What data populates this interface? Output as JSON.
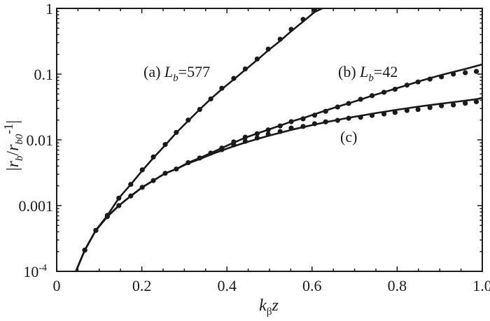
{
  "chart_data": {
    "type": "line",
    "title": "",
    "xlabel": "kβz",
    "ylabel": "|rb/rb0-1|",
    "xlabel_parts": {
      "main": "k",
      "sub": "β",
      "tail": "z"
    },
    "ylabel_parts": {
      "bar_open": "|",
      "r1": "r",
      "s1": "b",
      "slash": "/",
      "r2": "r",
      "s2": "b0",
      "tail": "-1",
      "bar_close": "|"
    },
    "xlim": [
      0,
      1.0
    ],
    "ylim": [
      0.0001,
      1
    ],
    "yscale": "log",
    "grid": false,
    "legend": "none (inline annotations)",
    "x_ticks": [
      {
        "value": 0,
        "label": "0"
      },
      {
        "value": 0.2,
        "label": "0.2"
      },
      {
        "value": 0.4,
        "label": "0.4"
      },
      {
        "value": 0.6,
        "label": "0.6"
      },
      {
        "value": 0.8,
        "label": "0.8"
      },
      {
        "value": 1.0,
        "label": "1.0"
      }
    ],
    "y_ticks": [
      {
        "value": 1,
        "label": "1"
      },
      {
        "value": 0.1,
        "label": "0.1"
      },
      {
        "value": 0.01,
        "label": "0.01"
      },
      {
        "value": 0.001,
        "label": "0.001"
      },
      {
        "value": 0.0001,
        "label": "10",
        "sup": "-4"
      }
    ],
    "annotations": [
      {
        "id": "a",
        "prefix": "(a) ",
        "var": "L",
        "sub": "b",
        "suffix": "=577",
        "x": 205,
        "y": 110
      },
      {
        "id": "b",
        "prefix": "(b) ",
        "var": "L",
        "sub": "b",
        "suffix": "=42",
        "x": 483,
        "y": 110
      },
      {
        "id": "c",
        "prefix": "(c)",
        "var": "",
        "sub": "",
        "suffix": "",
        "x": 486,
        "y": 203
      }
    ],
    "series": [
      {
        "name": "(a) Lb=577",
        "line": {
          "x": [
            0.045,
            0.066,
            0.092,
            0.119,
            0.146,
            0.174,
            0.201,
            0.227,
            0.255,
            0.281,
            0.309,
            0.336,
            0.362,
            0.388,
            0.416,
            0.443,
            0.471,
            0.497,
            0.525,
            0.551,
            0.579,
            0.606,
            0.624
          ],
          "y": [
            0.0001,
            0.00021,
            0.00042,
            0.00071,
            0.0013,
            0.0021,
            0.0034,
            0.0053,
            0.0083,
            0.0128,
            0.0195,
            0.029,
            0.042,
            0.059,
            0.083,
            0.116,
            0.164,
            0.23,
            0.32,
            0.45,
            0.63,
            0.88,
            1.0
          ]
        },
        "points": {
          "x": [
            0.066,
            0.092,
            0.119,
            0.146,
            0.174,
            0.201,
            0.227,
            0.255,
            0.281,
            0.309,
            0.336,
            0.362,
            0.388,
            0.416,
            0.443,
            0.471,
            0.497,
            0.525,
            0.551,
            0.579,
            0.606
          ],
          "y": [
            0.00021,
            0.00042,
            0.00071,
            0.0013,
            0.0021,
            0.0035,
            0.0055,
            0.0085,
            0.013,
            0.02,
            0.029,
            0.042,
            0.061,
            0.086,
            0.12,
            0.17,
            0.24,
            0.34,
            0.48,
            0.68,
            0.95
          ]
        }
      },
      {
        "name": "(b) Lb=42",
        "line": {
          "x": [
            0.045,
            0.066,
            0.092,
            0.119,
            0.146,
            0.174,
            0.201,
            0.227,
            0.255,
            0.281,
            0.309,
            0.336,
            0.362,
            0.388,
            0.416,
            0.443,
            0.471,
            0.497,
            0.525,
            0.551,
            0.579,
            0.606,
            0.632,
            0.66,
            0.686,
            0.714,
            0.741,
            0.769,
            0.795,
            0.823,
            0.849,
            0.877,
            0.904,
            0.932,
            0.96,
            0.986,
            1.0
          ],
          "y": [
            0.0001,
            0.00021,
            0.00042,
            0.00068,
            0.001,
            0.0014,
            0.0019,
            0.0024,
            0.0031,
            0.0036,
            0.0045,
            0.0053,
            0.0063,
            0.0075,
            0.0091,
            0.0108,
            0.0125,
            0.0143,
            0.0165,
            0.019,
            0.0215,
            0.0245,
            0.028,
            0.032,
            0.036,
            0.041,
            0.047,
            0.053,
            0.06,
            0.068,
            0.077,
            0.087,
            0.097,
            0.108,
            0.12,
            0.133,
            0.141
          ]
        },
        "points": {
          "x": [
            0.066,
            0.092,
            0.119,
            0.146,
            0.174,
            0.201,
            0.227,
            0.255,
            0.281,
            0.309,
            0.336,
            0.362,
            0.388,
            0.416,
            0.443,
            0.471,
            0.497,
            0.525,
            0.551,
            0.579,
            0.606,
            0.632,
            0.66,
            0.686,
            0.714,
            0.741,
            0.769,
            0.795,
            0.823,
            0.849,
            0.877,
            0.904,
            0.932,
            0.96,
            0.986
          ],
          "y": [
            0.00021,
            0.00042,
            0.00068,
            0.001,
            0.0014,
            0.0019,
            0.0024,
            0.0031,
            0.0036,
            0.0045,
            0.0053,
            0.0063,
            0.0075,
            0.0093,
            0.011,
            0.0124,
            0.0142,
            0.0163,
            0.0189,
            0.0209,
            0.0237,
            0.0272,
            0.0316,
            0.0358,
            0.0414,
            0.047,
            0.053,
            0.059,
            0.068,
            0.076,
            0.084,
            0.091,
            0.1,
            0.105,
            0.11
          ]
        }
      },
      {
        "name": "(c)",
        "line": {
          "x": [
            0.045,
            0.066,
            0.092,
            0.119,
            0.146,
            0.174,
            0.201,
            0.227,
            0.255,
            0.281,
            0.309,
            0.336,
            0.362,
            0.388,
            0.416,
            0.443,
            0.471,
            0.497,
            0.525,
            0.551,
            0.579,
            0.606,
            0.632,
            0.66,
            0.686,
            0.714,
            0.741,
            0.769,
            0.795,
            0.823,
            0.849,
            0.877,
            0.904,
            0.932,
            0.96,
            0.986,
            1.0
          ],
          "y": [
            0.0001,
            0.00021,
            0.00042,
            0.00068,
            0.001,
            0.0014,
            0.0019,
            0.0024,
            0.0031,
            0.0036,
            0.0044,
            0.0051,
            0.006,
            0.0069,
            0.008,
            0.0091,
            0.0103,
            0.0115,
            0.0128,
            0.0142,
            0.0156,
            0.0171,
            0.0186,
            0.0201,
            0.0217,
            0.0233,
            0.025,
            0.0267,
            0.0284,
            0.0302,
            0.032,
            0.0338,
            0.0356,
            0.0375,
            0.0395,
            0.0415,
            0.0435
          ]
        },
        "points": {
          "x": [
            0.388,
            0.416,
            0.443,
            0.471,
            0.497,
            0.525,
            0.551,
            0.579,
            0.606,
            0.632,
            0.66,
            0.686,
            0.714,
            0.741,
            0.769,
            0.795,
            0.823,
            0.849,
            0.877,
            0.904,
            0.932,
            0.96,
            0.986
          ],
          "y": [
            0.0071,
            0.0084,
            0.0095,
            0.0107,
            0.0122,
            0.0134,
            0.0151,
            0.016,
            0.0176,
            0.0188,
            0.0198,
            0.0213,
            0.022,
            0.0235,
            0.0248,
            0.0261,
            0.028,
            0.029,
            0.031,
            0.033,
            0.034,
            0.036,
            0.038
          ]
        }
      }
    ]
  },
  "style": {
    "line_color": "#1a1a1a",
    "point_color": "#1a1a1a",
    "background": "#ffffff"
  }
}
